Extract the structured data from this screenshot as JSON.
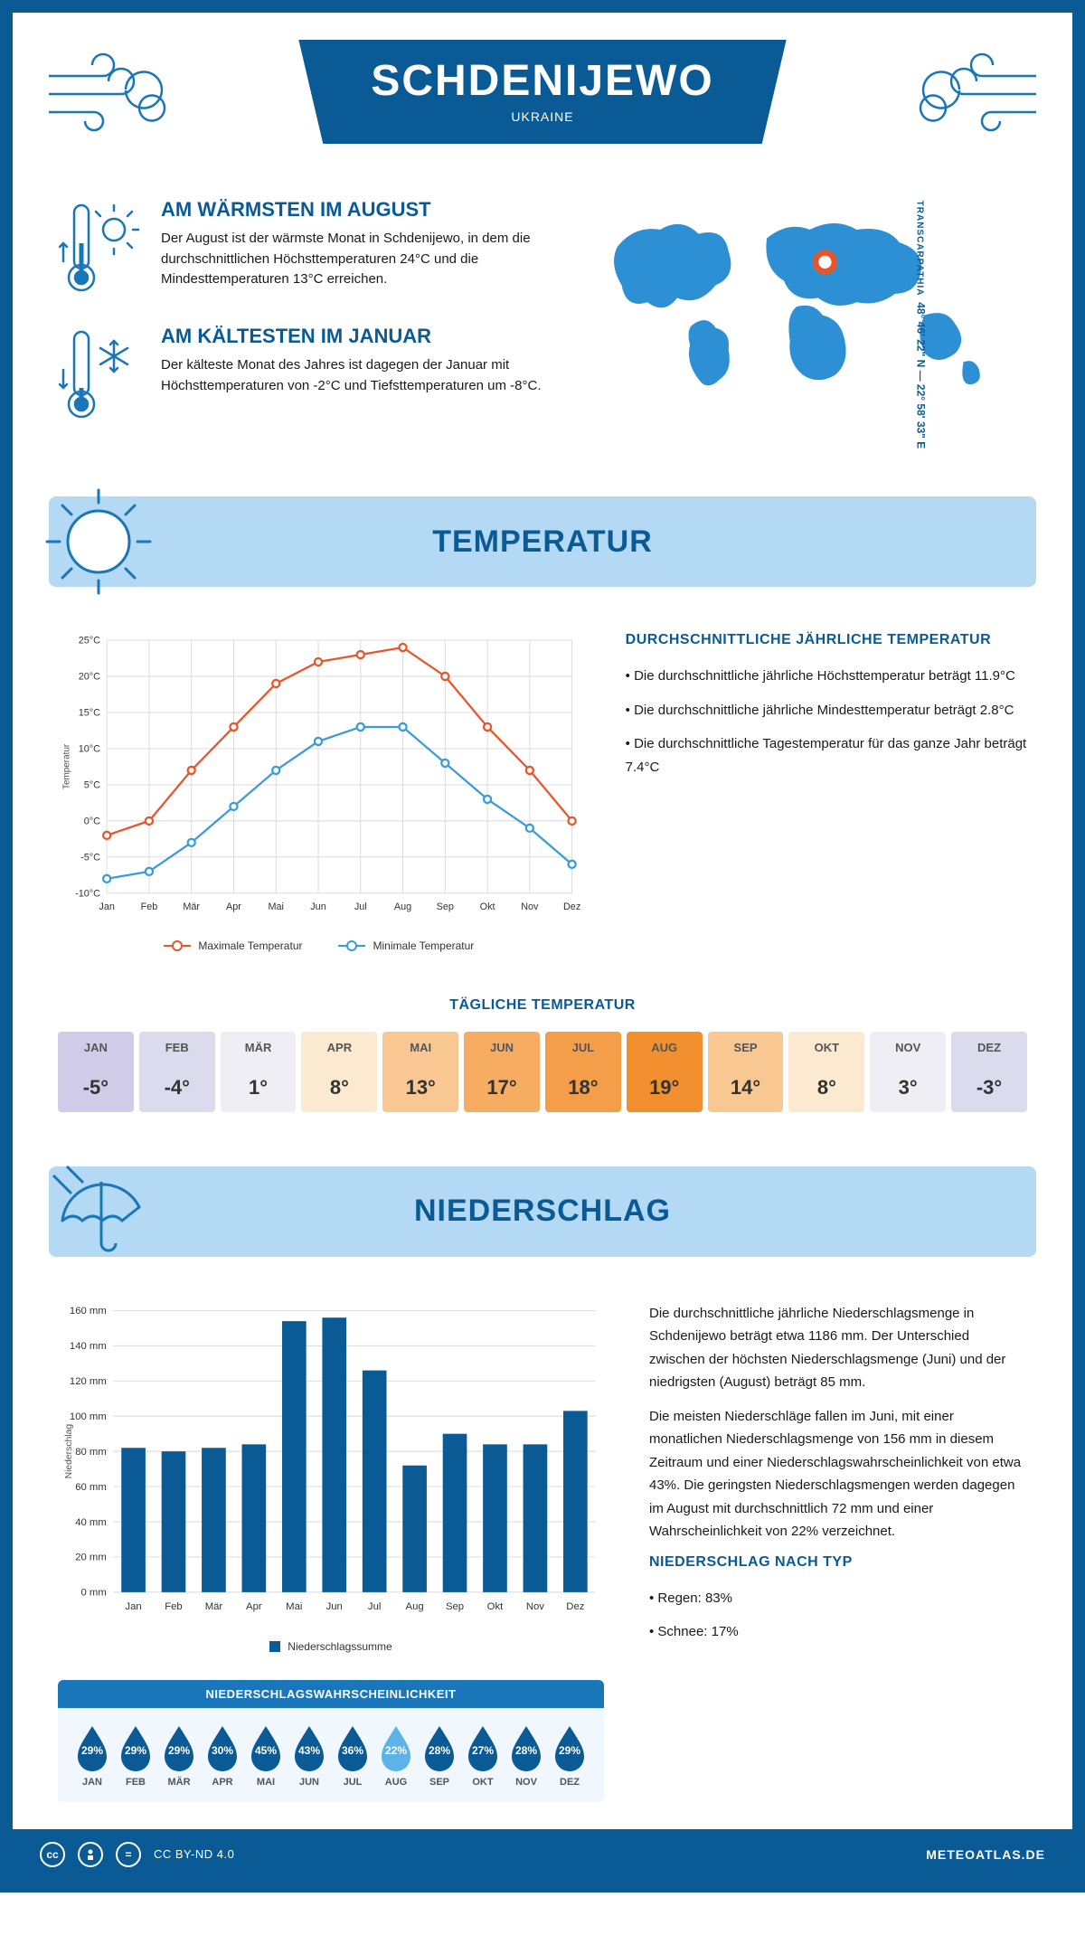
{
  "header": {
    "title": "SCHDENIJEWO",
    "subtitle": "UKRAINE"
  },
  "coords": {
    "lat_lon": "48° 46' 22\" N — 22° 58' 33\" E",
    "region": "TRANSCARPATHIA"
  },
  "summaries": {
    "warm": {
      "title": "AM WÄRMSTEN IM AUGUST",
      "text": "Der August ist der wärmste Monat in Schdenijewo, in dem die durchschnittlichen Höchsttemperaturen 24°C und die Mindesttemperaturen 13°C erreichen."
    },
    "cold": {
      "title": "AM KÄLTESTEN IM JANUAR",
      "text": "Der kälteste Monat des Jahres ist dagegen der Januar mit Höchsttemperaturen von -2°C und Tiefsttemperaturen um -8°C."
    }
  },
  "section_temp": "TEMPERATUR",
  "section_precip": "NIEDERSCHLAG",
  "months": [
    "Jan",
    "Feb",
    "Mär",
    "Apr",
    "Mai",
    "Jun",
    "Jul",
    "Aug",
    "Sep",
    "Okt",
    "Nov",
    "Dez"
  ],
  "months_upper": [
    "JAN",
    "FEB",
    "MÄR",
    "APR",
    "MAI",
    "JUN",
    "JUL",
    "AUG",
    "SEP",
    "OKT",
    "NOV",
    "DEZ"
  ],
  "temp_chart": {
    "type": "line",
    "ylabel": "Temperatur",
    "ylim": [
      -10,
      25
    ],
    "ytick_step": 5,
    "yticks": [
      "-10°C",
      "-5°C",
      "0°C",
      "5°C",
      "10°C",
      "15°C",
      "20°C",
      "25°C"
    ],
    "max_series": {
      "label": "Maximale Temperatur",
      "color": "#e8552b",
      "values": [
        -2,
        0,
        7,
        13,
        19,
        22,
        23,
        24,
        20,
        13,
        7,
        0
      ]
    },
    "min_series": {
      "label": "Minimale Temperatur",
      "color": "#3a9bd9",
      "values": [
        -8,
        -7,
        -3,
        2,
        7,
        11,
        13,
        13,
        8,
        3,
        -1,
        -6
      ]
    },
    "grid_color": "#d8d8d8",
    "background": "#ffffff"
  },
  "temp_side": {
    "heading": "DURCHSCHNITTLICHE JÄHRLICHE TEMPERATUR",
    "p1": "• Die durchschnittliche jährliche Höchsttemperatur beträgt 11.9°C",
    "p2": "• Die durchschnittliche jährliche Mindesttemperatur beträgt 2.8°C",
    "p3": "• Die durchschnittliche Tagestemperatur für das ganze Jahr beträgt 7.4°C"
  },
  "daily": {
    "heading": "TÄGLICHE TEMPERATUR",
    "values": [
      "-5°",
      "-4°",
      "1°",
      "8°",
      "13°",
      "17°",
      "18°",
      "19°",
      "14°",
      "8°",
      "3°",
      "-3°"
    ],
    "colors": [
      "#d0cce8",
      "#dcdaed",
      "#eeeef4",
      "#fbe9d0",
      "#f9c892",
      "#f6ad62",
      "#f59e49",
      "#f28f2f",
      "#f9c892",
      "#fbe9d0",
      "#eeeef4",
      "#dcdaed"
    ]
  },
  "precip_chart": {
    "type": "bar",
    "ylabel": "Niederschlag",
    "ylim": [
      0,
      160
    ],
    "ytick_step": 20,
    "yticks": [
      "0 mm",
      "20 mm",
      "40 mm",
      "60 mm",
      "80 mm",
      "100 mm",
      "120 mm",
      "140 mm",
      "160 mm"
    ],
    "values": [
      82,
      80,
      82,
      84,
      154,
      156,
      126,
      72,
      90,
      84,
      84,
      103
    ],
    "bar_color": "#0a5a96",
    "grid_color": "#d8d8d8",
    "legend": "Niederschlagssumme"
  },
  "precip_side": {
    "p1": "Die durchschnittliche jährliche Niederschlagsmenge in Schdenijewo beträgt etwa 1186 mm. Der Unterschied zwischen der höchsten Niederschlagsmenge (Juni) und der niedrigsten (August) beträgt 85 mm.",
    "p2": "Die meisten Niederschläge fallen im Juni, mit einer monatlichen Niederschlagsmenge von 156 mm in diesem Zeitraum und einer Niederschlagswahrscheinlichkeit von etwa 43%. Die geringsten Niederschlagsmengen werden dagegen im August mit durchschnittlich 72 mm und einer Wahrscheinlichkeit von 22% verzeichnet.",
    "h2": "NIEDERSCHLAG NACH TYP",
    "p3": "• Regen: 83%",
    "p4": "• Schnee: 17%"
  },
  "prob": {
    "heading": "NIEDERSCHLAGSWAHRSCHEINLICHKEIT",
    "values": [
      "29%",
      "29%",
      "29%",
      "30%",
      "45%",
      "43%",
      "36%",
      "22%",
      "28%",
      "27%",
      "28%",
      "29%"
    ],
    "min_index": 7,
    "dark": "#0a5a96",
    "light": "#5bb3e8"
  },
  "footer": {
    "license": "CC BY-ND 4.0",
    "brand": "METEOATLAS.DE"
  }
}
